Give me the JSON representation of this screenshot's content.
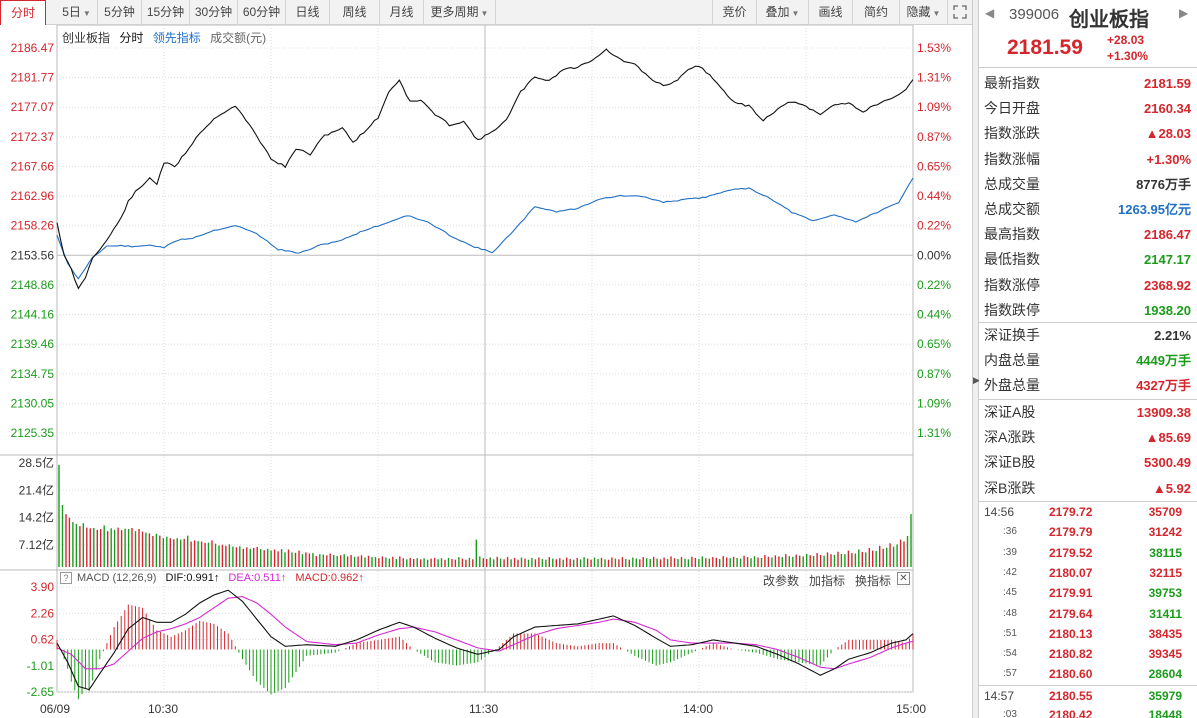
{
  "toolbar": {
    "left_tabs": [
      {
        "label": "分时",
        "active": true
      },
      {
        "label": "5日",
        "dropdown": true
      },
      {
        "label": "5分钟"
      },
      {
        "label": "15分钟"
      },
      {
        "label": "30分钟"
      },
      {
        "label": "60分钟"
      },
      {
        "label": "日线"
      },
      {
        "label": "周线"
      },
      {
        "label": "月线"
      },
      {
        "label": "更多周期",
        "dropdown": true
      }
    ],
    "right_buttons": [
      {
        "label": "竞价"
      },
      {
        "label": "叠加",
        "dropdown": true
      },
      {
        "label": "画线"
      },
      {
        "label": "简约"
      },
      {
        "label": "隐藏",
        "dropdown": true
      }
    ],
    "expand_icon": "expand-icon"
  },
  "legend": {
    "name": "创业板指",
    "mode": "分时",
    "leading": "领先指标",
    "volume": "成交额(元)"
  },
  "colors": {
    "up": "#d4262c",
    "down": "#1a9c1a",
    "price_line": "#111111",
    "avg_line": "#1f6fc5",
    "dif_line": "#111111",
    "dea_line": "#d42bd4",
    "grid": "#dcdcdc",
    "mid_line": "#bbbbbb"
  },
  "chart_data": {
    "type": "line",
    "title": "创业板指 分时",
    "prev_close": 2153.56,
    "price_axis_labels": [
      "2186.47",
      "2181.77",
      "2177.07",
      "2172.37",
      "2167.66",
      "2162.96",
      "2158.26",
      "2153.56",
      "2148.86",
      "2144.16",
      "2139.46",
      "2134.75",
      "2130.05",
      "2125.35"
    ],
    "pct_axis_labels": [
      "1.53%",
      "1.31%",
      "1.09%",
      "0.87%",
      "0.65%",
      "0.44%",
      "0.22%",
      "0.00%",
      "0.22%",
      "0.44%",
      "0.65%",
      "0.87%",
      "1.09%",
      "1.31%"
    ],
    "ylim": [
      2125.35,
      2186.47
    ],
    "time_labels": [
      "06/09",
      "10:30",
      "11:30",
      "14:00",
      "15:00"
    ],
    "price_series_keypoints": [
      [
        0,
        2158.8
      ],
      [
        2,
        2153.5
      ],
      [
        4,
        2151.3
      ],
      [
        6,
        2148.2
      ],
      [
        8,
        2150.1
      ],
      [
        10,
        2153.2
      ],
      [
        12,
        2154.6
      ],
      [
        14,
        2155.9
      ],
      [
        16,
        2157.8
      ],
      [
        18,
        2159.5
      ],
      [
        20,
        2162.1
      ],
      [
        22,
        2163.6
      ],
      [
        24,
        2164.6
      ],
      [
        26,
        2165.9
      ],
      [
        28,
        2164.9
      ],
      [
        30,
        2168.3
      ],
      [
        33,
        2167.6
      ],
      [
        36,
        2169.8
      ],
      [
        40,
        2173.0
      ],
      [
        45,
        2175.7
      ],
      [
        50,
        2177.3
      ],
      [
        55,
        2173.4
      ],
      [
        60,
        2168.9
      ],
      [
        64,
        2167.6
      ],
      [
        67,
        2170.5
      ],
      [
        71,
        2169.6
      ],
      [
        75,
        2172.6
      ],
      [
        80,
        2173.8
      ],
      [
        83,
        2171.5
      ],
      [
        86,
        2173.1
      ],
      [
        90,
        2175.4
      ],
      [
        93,
        2179.5
      ],
      [
        96,
        2181.4
      ],
      [
        99,
        2177.9
      ],
      [
        102,
        2178.2
      ],
      [
        106,
        2175.9
      ],
      [
        110,
        2174.3
      ],
      [
        114,
        2174.8
      ],
      [
        118,
        2171.8
      ],
      [
        121,
        2172.8
      ],
      [
        126,
        2175.0
      ],
      [
        130,
        2179.5
      ],
      [
        134,
        2181.9
      ],
      [
        138,
        2181.3
      ],
      [
        142,
        2183.1
      ],
      [
        146,
        2183.4
      ],
      [
        150,
        2184.6
      ],
      [
        154,
        2186.2
      ],
      [
        158,
        2184.6
      ],
      [
        162,
        2183.8
      ],
      [
        165,
        2182.3
      ],
      [
        168,
        2181.0
      ],
      [
        171,
        2180.5
      ],
      [
        174,
        2181.5
      ],
      [
        177,
        2182.9
      ],
      [
        180,
        2183.7
      ],
      [
        183,
        2182.1
      ],
      [
        186,
        2180.4
      ],
      [
        190,
        2177.7
      ],
      [
        194,
        2177.3
      ],
      [
        198,
        2175.0
      ],
      [
        202,
        2176.8
      ],
      [
        206,
        2178.0
      ],
      [
        210,
        2177.1
      ],
      [
        214,
        2175.9
      ],
      [
        218,
        2177.5
      ],
      [
        222,
        2177.8
      ],
      [
        226,
        2176.3
      ],
      [
        230,
        2177.6
      ],
      [
        234,
        2178.3
      ],
      [
        238,
        2179.8
      ],
      [
        240,
        2181.59
      ]
    ],
    "avg_series_keypoints": [
      [
        0,
        2156.8
      ],
      [
        3,
        2152.2
      ],
      [
        6,
        2149.8
      ],
      [
        10,
        2153.3
      ],
      [
        14,
        2155.0
      ],
      [
        18,
        2155.1
      ],
      [
        22,
        2154.9
      ],
      [
        26,
        2155.2
      ],
      [
        30,
        2154.8
      ],
      [
        34,
        2156.0
      ],
      [
        38,
        2156.3
      ],
      [
        44,
        2157.5
      ],
      [
        50,
        2158.3
      ],
      [
        56,
        2157.0
      ],
      [
        62,
        2154.5
      ],
      [
        68,
        2153.9
      ],
      [
        74,
        2155.2
      ],
      [
        80,
        2156.0
      ],
      [
        86,
        2157.5
      ],
      [
        92,
        2158.6
      ],
      [
        98,
        2159.9
      ],
      [
        104,
        2158.8
      ],
      [
        110,
        2156.8
      ],
      [
        116,
        2155.1
      ],
      [
        122,
        2154.0
      ],
      [
        128,
        2157.4
      ],
      [
        134,
        2161.3
      ],
      [
        140,
        2160.5
      ],
      [
        146,
        2161.0
      ],
      [
        152,
        2162.5
      ],
      [
        158,
        2163.0
      ],
      [
        164,
        2162.9
      ],
      [
        170,
        2162.0
      ],
      [
        176,
        2162.4
      ],
      [
        182,
        2162.8
      ],
      [
        188,
        2163.9
      ],
      [
        194,
        2164.2
      ],
      [
        200,
        2162.6
      ],
      [
        206,
        2160.4
      ],
      [
        212,
        2159.0
      ],
      [
        218,
        2160.0
      ],
      [
        224,
        2158.9
      ],
      [
        230,
        2160.4
      ],
      [
        236,
        2161.9
      ],
      [
        240,
        2165.9
      ]
    ],
    "volume_axis_labels": [
      "28.5亿",
      "21.4亿",
      "14.2亿",
      "7.12亿"
    ],
    "volume_max": 28.5,
    "volume_series": [
      28.0,
      17.0,
      14.5,
      13.5,
      12.3,
      11.8,
      11.2,
      12.0,
      10.8,
      10.6,
      10.7,
      10.2,
      10.4,
      11.4,
      9.8,
      10.6,
      10.2,
      10.8,
      10.1,
      10.5,
      10.4,
      10.7,
      9.8,
      10.4,
      9.7,
      9.4,
      9.2,
      8.5,
      9.1,
      8.6,
      7.9,
      8.3,
      7.9,
      7.6,
      7.9,
      7.5,
      7.7,
      8.6,
      7.0,
      7.3,
      7.1,
      7.0,
      6.6,
      6.7,
      7.3,
      6.4,
      5.9,
      6.1,
      5.8,
      6.2,
      5.6,
      5.4,
      5.7,
      5.0,
      5.4,
      5.0,
      5.2,
      5.5,
      4.9,
      4.6,
      5.0,
      4.5,
      4.8,
      4.3,
      4.9,
      4.0,
      4.8,
      4.0,
      3.9,
      4.5,
      3.5,
      4.0,
      3.7,
      3.8,
      3.0,
      3.5,
      3.4,
      3.2,
      3.7,
      3.3,
      3.0,
      3.2,
      3.5,
      2.9,
      3.3,
      2.8,
      2.9,
      3.2,
      2.6,
      3.1,
      2.7,
      2.7,
      2.4,
      2.9,
      2.6,
      2.3,
      2.8,
      2.2,
      2.9,
      2.4,
      2.1,
      2.5,
      2.2,
      2.4,
      2.1,
      2.4,
      2.0,
      2.3,
      2.5,
      2.1,
      2.4,
      2.0,
      2.5,
      2.2,
      2.0,
      2.7,
      2.3,
      2.0,
      2.5,
      2.1,
      7.5,
      2.9,
      2.4,
      2.2,
      2.6,
      2.1,
      2.8,
      2.3,
      2.1,
      2.7,
      2.1,
      2.5,
      2.0,
      2.6,
      2.3,
      2.0,
      2.5,
      2.1,
      2.6,
      2.2,
      2.0,
      2.7,
      2.3,
      2.1,
      2.4,
      2.0,
      2.6,
      2.2,
      2.0,
      2.5,
      2.1,
      2.7,
      2.3,
      2.0,
      2.6,
      2.2,
      2.5,
      2.1,
      2.0,
      2.6,
      2.3,
      2.1,
      2.7,
      2.2,
      2.0,
      2.6,
      2.3,
      2.1,
      2.7,
      2.4,
      2.2,
      2.8,
      2.3,
      2.1,
      2.6,
      2.2,
      2.9,
      2.4,
      2.2,
      2.7,
      2.3,
      2.1,
      2.8,
      2.5,
      2.2,
      2.9,
      2.4,
      2.3,
      2.7,
      2.5,
      2.2,
      3.0,
      2.6,
      2.4,
      2.8,
      2.5,
      2.3,
      3.1,
      2.7,
      2.4,
      3.0,
      2.6,
      2.5,
      3.3,
      2.8,
      2.6,
      3.2,
      2.9,
      2.7,
      3.5,
      3.0,
      2.8,
      3.4,
      3.1,
      2.9,
      3.6,
      3.2,
      3.0,
      3.8,
      3.3,
      3.1,
      4.0,
      3.5,
      3.3,
      4.2,
      3.6,
      3.5,
      4.5,
      3.8,
      3.7,
      4.8,
      4.1,
      4.0,
      5.2,
      4.5,
      4.4,
      5.8,
      5.0,
      5.3,
      6.5,
      5.6,
      6.2,
      7.5,
      7.0,
      8.5,
      14.5
    ],
    "volume_up_flags_note": "bars alternate red/green",
    "macd": {
      "label": "MACD (12,26,9)",
      "dif_label": "DIF:0.991↑",
      "dea_label": "DEA:0.511↑",
      "macd_label": "MACD:0.962↑",
      "axis_labels": [
        "3.90",
        "2.26",
        "0.62",
        "-1.01",
        "-2.65"
      ],
      "ylim": [
        -2.65,
        3.9
      ],
      "dif_keypoints": [
        [
          0,
          0.4
        ],
        [
          3,
          -0.8
        ],
        [
          6,
          -2.3
        ],
        [
          9,
          -2.5
        ],
        [
          12,
          -1.5
        ],
        [
          16,
          -0.2
        ],
        [
          20,
          1.3
        ],
        [
          24,
          2.0
        ],
        [
          28,
          1.7
        ],
        [
          32,
          1.7
        ],
        [
          36,
          2.2
        ],
        [
          40,
          2.9
        ],
        [
          44,
          3.4
        ],
        [
          48,
          3.7
        ],
        [
          52,
          3.0
        ],
        [
          56,
          1.9
        ],
        [
          60,
          0.8
        ],
        [
          64,
          0.2
        ],
        [
          70,
          0.3
        ],
        [
          78,
          0.2
        ],
        [
          84,
          0.6
        ],
        [
          90,
          1.2
        ],
        [
          96,
          1.7
        ],
        [
          100,
          1.4
        ],
        [
          106,
          0.7
        ],
        [
          112,
          0.1
        ],
        [
          118,
          -0.3
        ],
        [
          124,
          0.0
        ],
        [
          128,
          0.8
        ],
        [
          134,
          1.4
        ],
        [
          140,
          1.5
        ],
        [
          146,
          1.6
        ],
        [
          152,
          1.9
        ],
        [
          156,
          2.1
        ],
        [
          162,
          1.5
        ],
        [
          168,
          0.7
        ],
        [
          172,
          0.2
        ],
        [
          178,
          0.3
        ],
        [
          184,
          0.6
        ],
        [
          190,
          0.4
        ],
        [
          196,
          0.2
        ],
        [
          202,
          -0.3
        ],
        [
          208,
          -0.9
        ],
        [
          214,
          -1.6
        ],
        [
          218,
          -1.2
        ],
        [
          222,
          -0.6
        ],
        [
          228,
          -0.2
        ],
        [
          234,
          0.4
        ],
        [
          238,
          0.6
        ],
        [
          240,
          0.991
        ]
      ],
      "dea_keypoints": [
        [
          0,
          0.1
        ],
        [
          4,
          -0.3
        ],
        [
          8,
          -1.2
        ],
        [
          12,
          -1.2
        ],
        [
          16,
          -0.9
        ],
        [
          20,
          -0.1
        ],
        [
          24,
          0.7
        ],
        [
          28,
          1.1
        ],
        [
          32,
          1.3
        ],
        [
          36,
          1.6
        ],
        [
          40,
          2.0
        ],
        [
          44,
          2.6
        ],
        [
          48,
          3.2
        ],
        [
          52,
          3.3
        ],
        [
          56,
          2.9
        ],
        [
          60,
          2.2
        ],
        [
          64,
          1.4
        ],
        [
          70,
          0.5
        ],
        [
          78,
          0.3
        ],
        [
          84,
          0.4
        ],
        [
          90,
          0.9
        ],
        [
          96,
          1.3
        ],
        [
          100,
          1.4
        ],
        [
          106,
          1.1
        ],
        [
          112,
          0.6
        ],
        [
          118,
          0.1
        ],
        [
          124,
          -0.1
        ],
        [
          128,
          0.3
        ],
        [
          134,
          0.9
        ],
        [
          140,
          1.3
        ],
        [
          146,
          1.5
        ],
        [
          152,
          1.7
        ],
        [
          156,
          1.9
        ],
        [
          162,
          1.7
        ],
        [
          168,
          1.2
        ],
        [
          172,
          0.6
        ],
        [
          178,
          0.4
        ],
        [
          184,
          0.4
        ],
        [
          190,
          0.4
        ],
        [
          196,
          0.3
        ],
        [
          202,
          0.0
        ],
        [
          208,
          -0.5
        ],
        [
          214,
          -1.1
        ],
        [
          218,
          -1.2
        ],
        [
          222,
          -0.9
        ],
        [
          228,
          -0.5
        ],
        [
          234,
          0.1
        ],
        [
          238,
          0.4
        ],
        [
          240,
          0.511
        ]
      ]
    }
  },
  "quote": {
    "code": "399006",
    "name": "创业板指",
    "price": "2181.59",
    "change": "+28.03",
    "change_pct": "+1.30%",
    "rows": [
      {
        "label": "最新指数",
        "value": "2181.59",
        "color": "red"
      },
      {
        "label": "今日开盘",
        "value": "2160.34",
        "color": "red"
      },
      {
        "label": "指数涨跌",
        "value": "▲28.03",
        "color": "red"
      },
      {
        "label": "指数涨幅",
        "value": "+1.30%",
        "color": "red"
      },
      {
        "label": "总成交量",
        "value": "8776万手",
        "color": "dark"
      },
      {
        "label": "总成交额",
        "value": "1263.95亿元",
        "color": "blue"
      },
      {
        "label": "最高指数",
        "value": "2186.47",
        "color": "red"
      },
      {
        "label": "最低指数",
        "value": "2147.17",
        "color": "green"
      },
      {
        "label": "指数涨停",
        "value": "2368.92",
        "color": "red"
      },
      {
        "label": "指数跌停",
        "value": "1938.20",
        "color": "green"
      }
    ],
    "rows2": [
      {
        "label": "深证换手",
        "value": "2.21%",
        "color": "dark"
      },
      {
        "label": "内盘总量",
        "value": "4449万手",
        "color": "green"
      },
      {
        "label": "外盘总量",
        "value": "4327万手",
        "color": "red"
      }
    ],
    "rows3": [
      {
        "label": "深证A股",
        "value": "13909.38",
        "color": "red"
      },
      {
        "label": "深A涨跌",
        "value": "▲85.69",
        "color": "red"
      },
      {
        "label": "深证B股",
        "value": "5300.49",
        "color": "red"
      },
      {
        "label": "深B涨跌",
        "value": "▲5.92",
        "color": "red"
      }
    ],
    "ticks": [
      {
        "time": "14:56",
        "major": true,
        "price": "2179.72",
        "vol": "35709",
        "vol_color": "red"
      },
      {
        "time": ":36",
        "major": false,
        "price": "2179.79",
        "vol": "31242",
        "vol_color": "red"
      },
      {
        "time": ":39",
        "major": false,
        "price": "2179.52",
        "vol": "38115",
        "vol_color": "green"
      },
      {
        "time": ":42",
        "major": false,
        "price": "2180.07",
        "vol": "32115",
        "vol_color": "red"
      },
      {
        "time": ":45",
        "major": false,
        "price": "2179.91",
        "vol": "39753",
        "vol_color": "green"
      },
      {
        "time": ":48",
        "major": false,
        "price": "2179.64",
        "vol": "31411",
        "vol_color": "green"
      },
      {
        "time": ":51",
        "major": false,
        "price": "2180.13",
        "vol": "38435",
        "vol_color": "red"
      },
      {
        "time": ":54",
        "major": false,
        "price": "2180.82",
        "vol": "39345",
        "vol_color": "red"
      },
      {
        "time": ":57",
        "major": false,
        "price": "2180.60",
        "vol": "28604",
        "vol_color": "green"
      },
      {
        "time": "14:57",
        "major": true,
        "price": "2180.55",
        "vol": "35979",
        "vol_color": "green"
      },
      {
        "time": ":03",
        "major": false,
        "price": "2180.42",
        "vol": "18448",
        "vol_color": "green"
      }
    ]
  },
  "macd_actions": [
    "改参数",
    "加指标",
    "换指标"
  ]
}
